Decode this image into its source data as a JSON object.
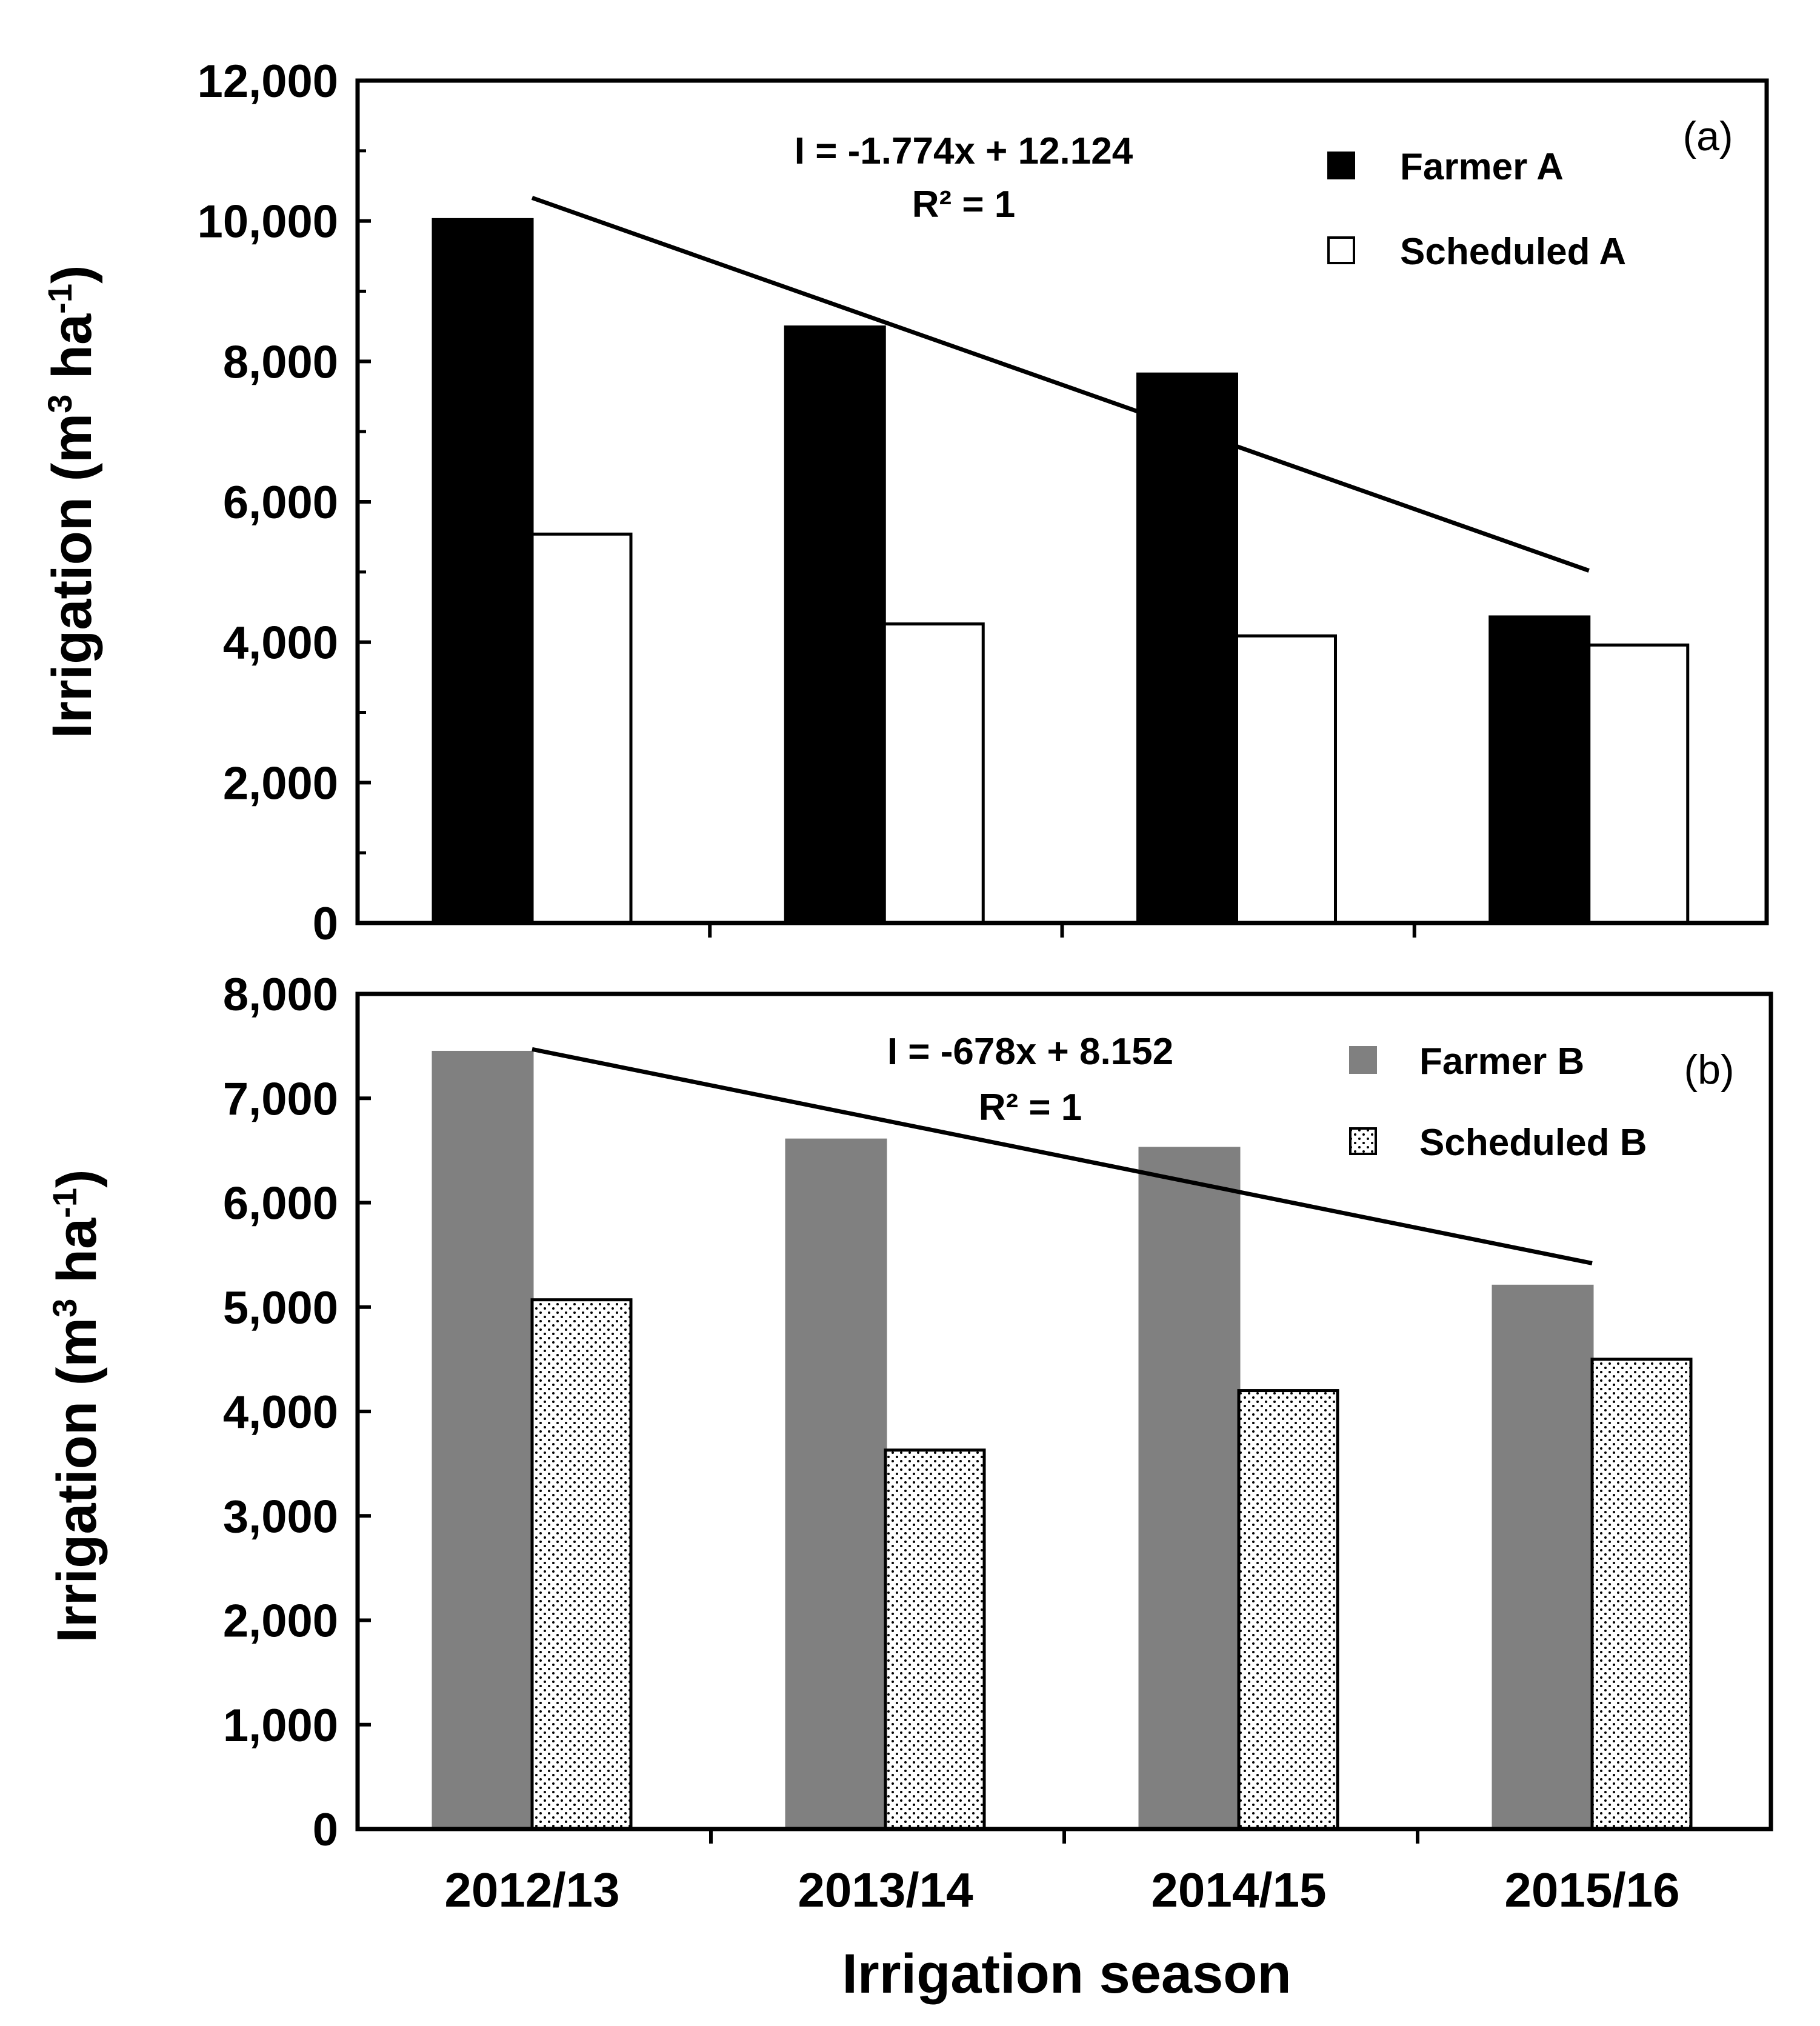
{
  "chart_data": [
    {
      "type": "bar",
      "panel": "a",
      "panel_label": "(a)",
      "categories": [
        "2012/13",
        "2013/14",
        "2014/15",
        "2015/16"
      ],
      "series": [
        {
          "name": "Farmer A",
          "values": [
            10020,
            8490,
            7820,
            4360
          ],
          "color": "#000000"
        },
        {
          "name": "Scheduled A",
          "values": [
            5540,
            4260,
            4090,
            3960
          ],
          "color": "#ffffff"
        }
      ],
      "trendline": {
        "start": 10330,
        "end": 5020
      },
      "equation": "I = -1.774x + 12.124",
      "r2": "R² = 1",
      "ylabel_main": "Irrigation (m",
      "ylabel_sup1": "3",
      "ylabel_mid": " ha",
      "ylabel_sup2": "-1",
      "ylabel_end": ")",
      "ylim": [
        0,
        12000
      ],
      "yticks": [
        "0",
        "2,000",
        "4,000",
        "6,000",
        "8,000",
        "10,000",
        "12,000"
      ],
      "legend_position": "top-right"
    },
    {
      "type": "bar",
      "panel": "b",
      "panel_label": "(b)",
      "categories": [
        "2012/13",
        "2013/14",
        "2014/15",
        "2015/16"
      ],
      "series": [
        {
          "name": "Farmer B",
          "values": [
            7440,
            6600,
            6520,
            5200
          ],
          "color": "#808080"
        },
        {
          "name": "Scheduled B",
          "values": [
            5070,
            3630,
            4200,
            4500
          ],
          "color": "#ffffff",
          "pattern": "dots"
        }
      ],
      "trendline": {
        "start": 7470,
        "end": 5420
      },
      "equation": "I = -678x + 8.152",
      "r2": "R² = 1",
      "ylabel_main": "Irrigation (m",
      "ylabel_sup1": "3",
      "ylabel_mid": " ha",
      "ylabel_sup2": "-1",
      "ylabel_end": ")",
      "ylim": [
        0,
        8000
      ],
      "yticks": [
        "0",
        "1,000",
        "2,000",
        "3,000",
        "4,000",
        "5,000",
        "6,000",
        "7,000",
        "8,000"
      ],
      "legend_position": "top-right",
      "xlabel": "Irrigation season"
    }
  ]
}
